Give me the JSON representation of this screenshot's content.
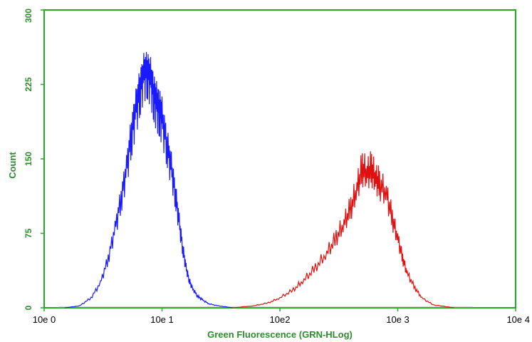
{
  "chart_data": {
    "type": "line",
    "title": "",
    "xlabel": "Green Fluorescence (GRN-HLog)",
    "ylabel": "Count",
    "x_scale": "log",
    "xlim": [
      1,
      10000
    ],
    "ylim": [
      0,
      300
    ],
    "grid": false,
    "x_ticks": [
      {
        "value": 1,
        "label": "10e 0"
      },
      {
        "value": 10,
        "label": "10e 1"
      },
      {
        "value": 100,
        "label": "10e2"
      },
      {
        "value": 1000,
        "label": "10e 3"
      },
      {
        "value": 10000,
        "label": "10e 4"
      }
    ],
    "y_ticks": [
      {
        "value": 0,
        "label": "0"
      },
      {
        "value": 75,
        "label": "75"
      },
      {
        "value": 150,
        "label": "150"
      },
      {
        "value": 225,
        "label": "225"
      },
      {
        "value": 300,
        "label": "300"
      }
    ],
    "series": [
      {
        "color": "#1a1aff",
        "x": [
          1.5,
          2.0,
          2.5,
          3.0,
          3.5,
          4.0,
          4.5,
          5.0,
          5.5,
          6.0,
          6.5,
          7.0,
          7.5,
          8.0,
          8.5,
          9.0,
          9.5,
          10,
          11,
          12,
          13,
          14,
          15,
          16,
          17,
          18,
          20,
          22,
          25,
          30,
          40
        ],
        "y": [
          0,
          2,
          10,
          25,
          50,
          80,
          110,
          140,
          175,
          200,
          220,
          235,
          238,
          230,
          215,
          205,
          200,
          190,
          165,
          140,
          115,
          85,
          60,
          40,
          28,
          20,
          12,
          8,
          4,
          2,
          0
        ]
      },
      {
        "color": "#e01010",
        "x": [
          40,
          60,
          80,
          100,
          130,
          160,
          200,
          250,
          300,
          350,
          400,
          450,
          500,
          550,
          600,
          650,
          700,
          800,
          900,
          1000,
          1100,
          1200,
          1400,
          1600,
          2000,
          3000
        ],
        "y": [
          0,
          2,
          5,
          10,
          18,
          28,
          40,
          55,
          70,
          85,
          100,
          120,
          140,
          135,
          140,
          130,
          125,
          115,
          90,
          70,
          50,
          35,
          20,
          10,
          3,
          0
        ]
      }
    ]
  }
}
